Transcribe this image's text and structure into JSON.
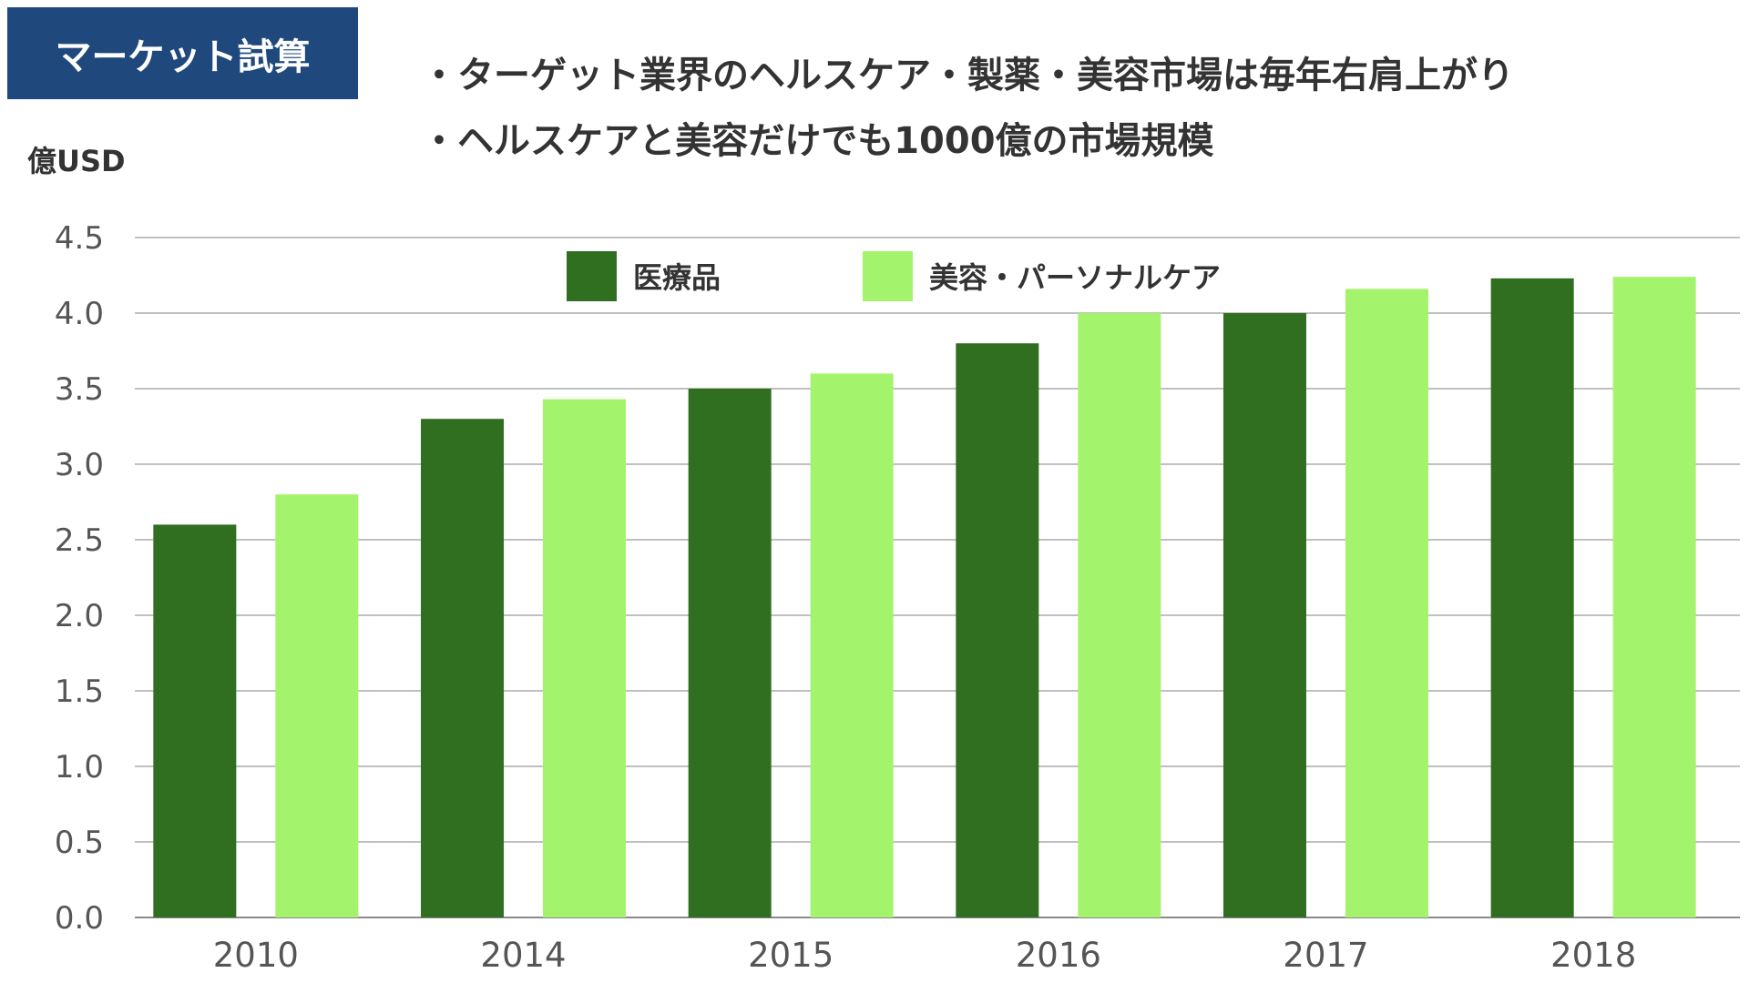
{
  "header": {
    "title": "マーケット試算",
    "bullets": [
      "・ターゲット業界のヘルスケア・製薬・美容市場は毎年右肩上がり",
      "・ヘルスケアと美容だけでも1000億の市場規模"
    ]
  },
  "chart_data": {
    "type": "bar",
    "ylabel": "億USD",
    "xlabel": "",
    "categories": [
      "2010",
      "2014",
      "2015",
      "2016",
      "2017",
      "2018"
    ],
    "series": [
      {
        "name": "医療品",
        "color": "#306f20",
        "values": [
          2.6,
          3.3,
          3.5,
          3.8,
          4.0,
          4.23
        ]
      },
      {
        "name": "美容・パーソナルケア",
        "color": "#a3f46c",
        "values": [
          2.8,
          3.43,
          3.6,
          4.0,
          4.16,
          4.24
        ]
      }
    ],
    "yticks": [
      "0.0",
      "0.5",
      "1.0",
      "1.5",
      "2.0",
      "2.5",
      "3.0",
      "3.5",
      "4.0",
      "4.5"
    ],
    "ylim": [
      0,
      4.5
    ],
    "grid": true,
    "legend_position": "top"
  }
}
